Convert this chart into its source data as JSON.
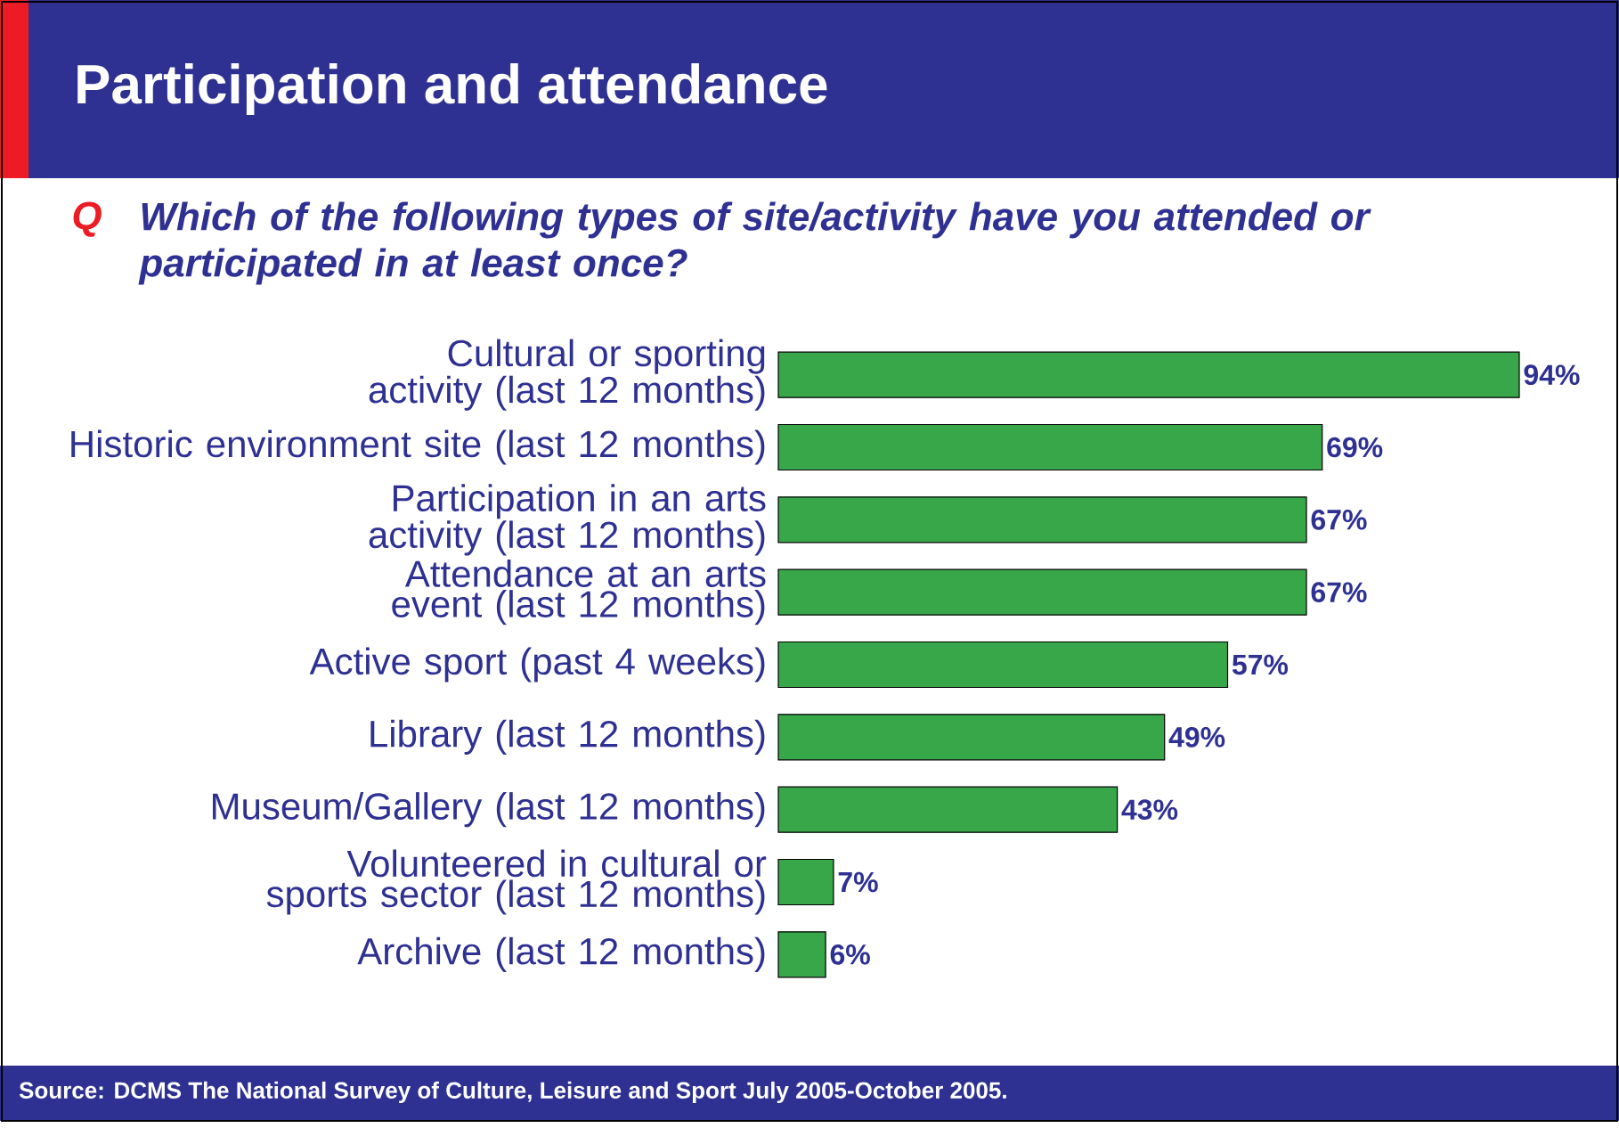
{
  "chart_data": {
    "type": "bar",
    "orientation": "horizontal",
    "title": "Participation and attendance",
    "subtitle": "Which of the following types of site/activity have you attended or participated in at least once?",
    "annotations": [
      "Q",
      "Source: DCMS The National Survey of Culture, Leisure and Sport July 2005-October 2005."
    ],
    "categories": [
      "Cultural or sporting activity (last 12 months)",
      "Historic environment site (last 12 months)",
      "Participation in an arts activity (last 12 months)",
      "Attendance at an arts event (last 12 months)",
      "Active sport (past 4 weeks)",
      "Library (last 12 months)",
      "Museum/Gallery (last 12 months)",
      "Volunteered in cultural or sports sector (last 12 months)",
      "Archive (last 12 months)"
    ],
    "values": [
      94,
      69,
      67,
      67,
      57,
      49,
      43,
      7,
      6
    ],
    "value_labels": [
      "94%",
      "69%",
      "67%",
      "67%",
      "57%",
      "49%",
      "43%",
      "7%",
      "6%"
    ],
    "color": "#37a74a"
  }
}
